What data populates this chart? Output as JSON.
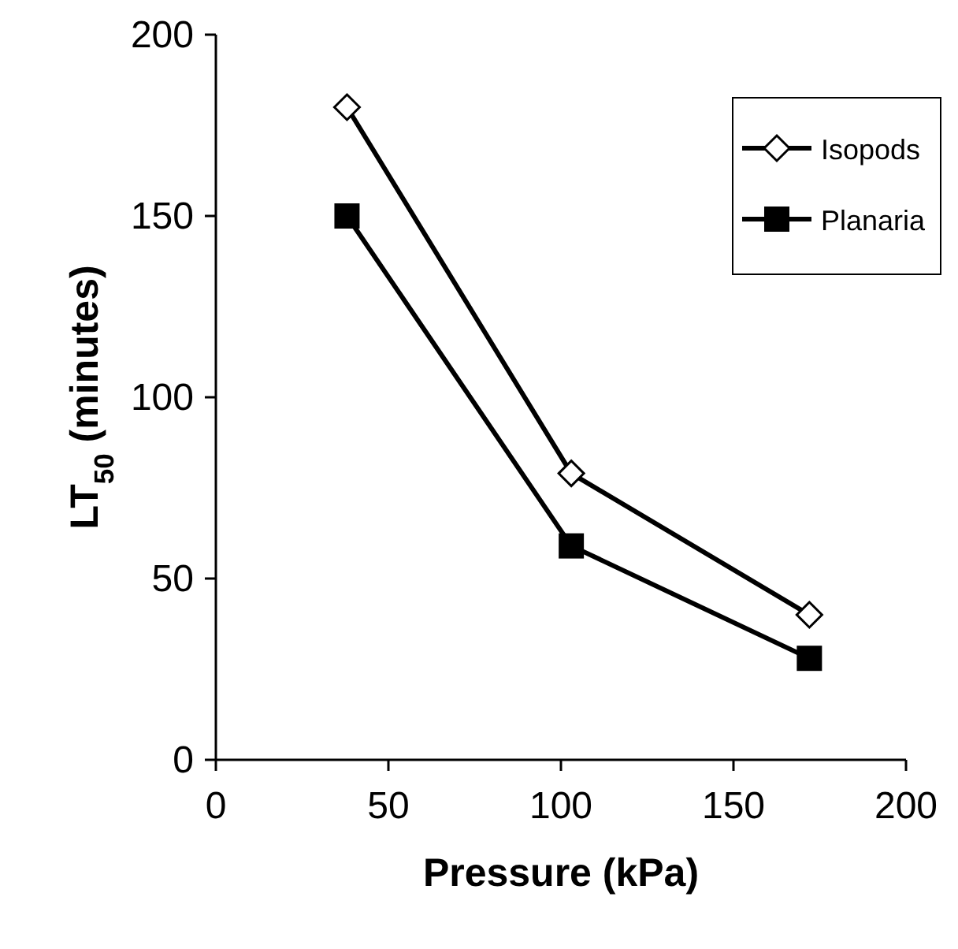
{
  "chart_data": {
    "type": "line",
    "xlabel": "Pressure (kPa)",
    "ylabel": "LT$_{50}$ (minutes)",
    "xlim": [
      0,
      200
    ],
    "xticks": [
      0,
      50,
      100,
      150,
      200
    ],
    "ylim": [
      0,
      200
    ],
    "yticks": [
      0,
      50,
      100,
      150,
      200
    ],
    "legend": "top right",
    "grid": false,
    "line_style": "solid",
    "series": [
      {
        "name": "Isopods",
        "color": "#000000",
        "marker": "diamond",
        "x": [
          38,
          103,
          172
        ],
        "values": [
          180,
          79,
          40
        ]
      },
      {
        "name": "Planaria",
        "color": "#000000",
        "marker": "square",
        "x": [
          38,
          103,
          172
        ],
        "values": [
          150,
          59,
          28
        ]
      }
    ]
  }
}
